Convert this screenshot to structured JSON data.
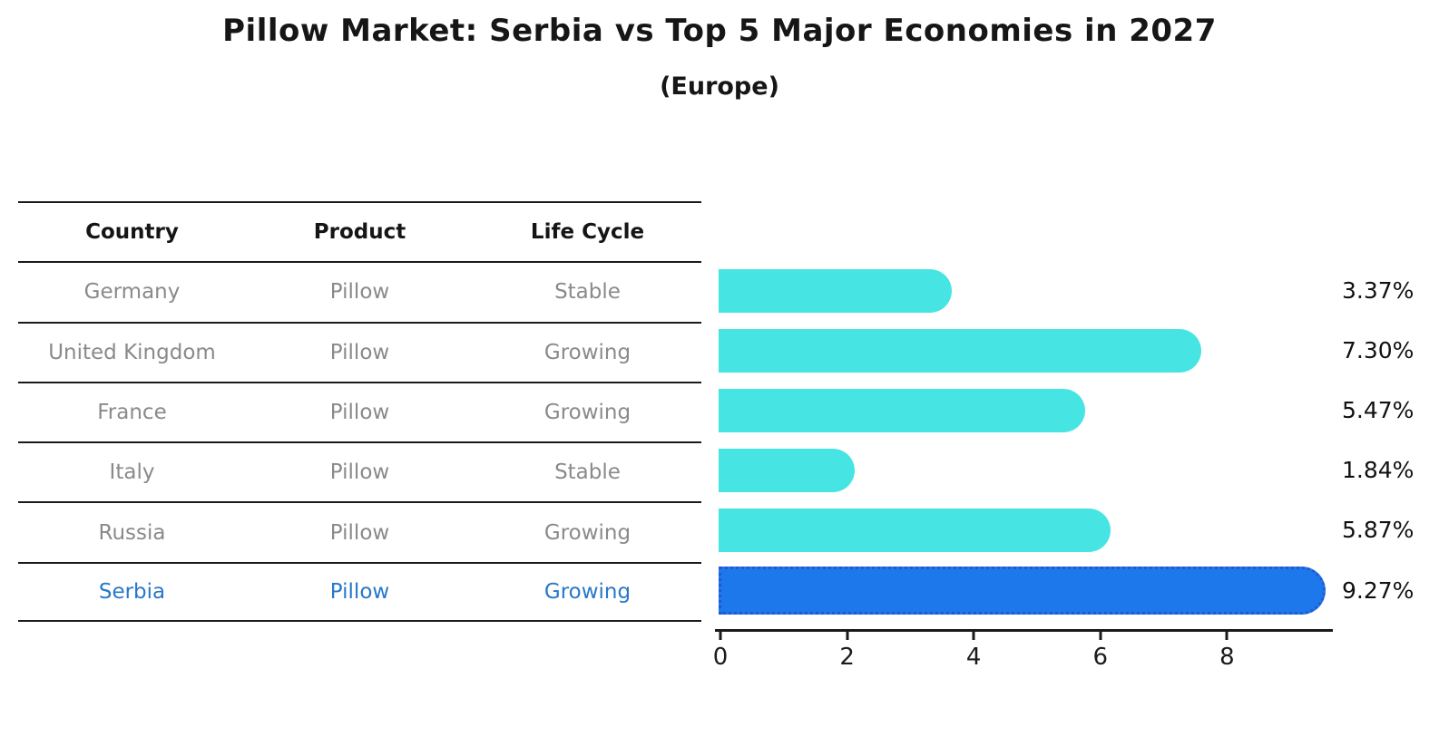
{
  "title": "Pillow Market: Serbia vs Top 5 Major Economies in 2027",
  "subtitle": "(Europe)",
  "table": {
    "headers": [
      "Country",
      "Product",
      "Life Cycle"
    ],
    "rows": [
      {
        "country": "Germany",
        "product": "Pillow",
        "life_cycle": "Stable",
        "highlight": false
      },
      {
        "country": "United Kingdom",
        "product": "Pillow",
        "life_cycle": "Growing",
        "highlight": false
      },
      {
        "country": "France",
        "product": "Pillow",
        "life_cycle": "Growing",
        "highlight": false
      },
      {
        "country": "Italy",
        "product": "Pillow",
        "life_cycle": "Stable",
        "highlight": false
      },
      {
        "country": "Russia",
        "product": "Pillow",
        "life_cycle": "Growing",
        "highlight": false
      },
      {
        "country": "Serbia",
        "product": "Pillow",
        "life_cycle": "Growing",
        "highlight": true
      }
    ]
  },
  "chart_data": {
    "type": "bar",
    "orientation": "horizontal",
    "title": "Pillow Market: Serbia vs Top 5 Major Economies in 2027",
    "subtitle": "(Europe)",
    "categories": [
      "Germany",
      "United Kingdom",
      "France",
      "Italy",
      "Russia",
      "Serbia"
    ],
    "values": [
      3.37,
      7.3,
      5.47,
      1.84,
      5.87,
      9.27
    ],
    "value_labels": [
      "3.37%",
      "7.30%",
      "5.47%",
      "1.84%",
      "5.87%",
      "9.27%"
    ],
    "x_ticks": [
      0,
      2,
      4,
      6,
      8
    ],
    "xlim": [
      0,
      9.7
    ],
    "grid": false,
    "legend": false,
    "highlight_index": 5,
    "bar_color": "#46e5e3",
    "highlight_color": "#1d78eb",
    "highlight_border_color": "#2458cf",
    "table_text_color": "#8a8a8a",
    "highlight_text_color": "#2878c8"
  }
}
